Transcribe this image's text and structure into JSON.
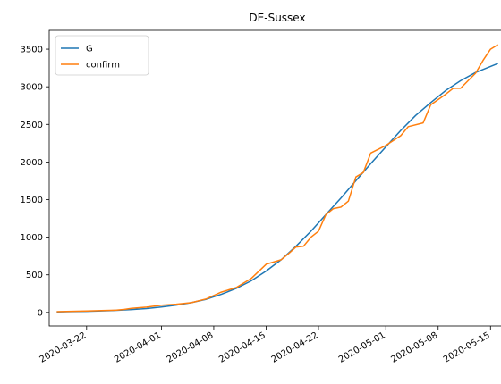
{
  "chart_data": {
    "type": "line",
    "title": "DE-Sussex",
    "xlabel": "",
    "ylabel": "",
    "x_axis_type": "date",
    "xlim": [
      "2020-03-17",
      "2020-05-17"
    ],
    "ylim": [
      -180,
      3750
    ],
    "x_ticks": [
      "2020-03-22",
      "2020-04-01",
      "2020-04-08",
      "2020-04-15",
      "2020-04-22",
      "2020-05-01",
      "2020-05-08",
      "2020-05-15"
    ],
    "y_ticks": [
      0,
      500,
      1000,
      1500,
      2000,
      2500,
      3000,
      3500
    ],
    "grid": false,
    "legend_position": "top-left",
    "series": [
      {
        "name": "G",
        "color": "#1f77b4",
        "points": [
          [
            "2020-03-18",
            8
          ],
          [
            "2020-03-20",
            11
          ],
          [
            "2020-03-22",
            15
          ],
          [
            "2020-03-24",
            21
          ],
          [
            "2020-03-26",
            28
          ],
          [
            "2020-03-28",
            38
          ],
          [
            "2020-03-30",
            52
          ],
          [
            "2020-04-01",
            72
          ],
          [
            "2020-04-03",
            98
          ],
          [
            "2020-04-05",
            130
          ],
          [
            "2020-04-07",
            175
          ],
          [
            "2020-04-09",
            240
          ],
          [
            "2020-04-11",
            320
          ],
          [
            "2020-04-13",
            420
          ],
          [
            "2020-04-15",
            550
          ],
          [
            "2020-04-17",
            700
          ],
          [
            "2020-04-19",
            880
          ],
          [
            "2020-04-21",
            1080
          ],
          [
            "2020-04-23",
            1300
          ],
          [
            "2020-04-25",
            1520
          ],
          [
            "2020-04-27",
            1750
          ],
          [
            "2020-04-29",
            1980
          ],
          [
            "2020-05-01",
            2200
          ],
          [
            "2020-05-03",
            2420
          ],
          [
            "2020-05-05",
            2620
          ],
          [
            "2020-05-07",
            2790
          ],
          [
            "2020-05-09",
            2950
          ],
          [
            "2020-05-11",
            3080
          ],
          [
            "2020-05-13",
            3190
          ],
          [
            "2020-05-15",
            3270
          ],
          [
            "2020-05-16",
            3310
          ]
        ]
      },
      {
        "name": "confirm",
        "color": "#ff7f0e",
        "points": [
          [
            "2020-03-18",
            10
          ],
          [
            "2020-03-20",
            15
          ],
          [
            "2020-03-22",
            20
          ],
          [
            "2020-03-24",
            25
          ],
          [
            "2020-03-26",
            30
          ],
          [
            "2020-03-27",
            40
          ],
          [
            "2020-03-28",
            55
          ],
          [
            "2020-03-30",
            70
          ],
          [
            "2020-04-01",
            95
          ],
          [
            "2020-04-03",
            110
          ],
          [
            "2020-04-05",
            130
          ],
          [
            "2020-04-07",
            180
          ],
          [
            "2020-04-09",
            270
          ],
          [
            "2020-04-11",
            330
          ],
          [
            "2020-04-13",
            450
          ],
          [
            "2020-04-15",
            640
          ],
          [
            "2020-04-17",
            700
          ],
          [
            "2020-04-18",
            780
          ],
          [
            "2020-04-19",
            870
          ],
          [
            "2020-04-20",
            880
          ],
          [
            "2020-04-21",
            1000
          ],
          [
            "2020-04-22",
            1080
          ],
          [
            "2020-04-23",
            1300
          ],
          [
            "2020-04-24",
            1380
          ],
          [
            "2020-04-25",
            1400
          ],
          [
            "2020-04-26",
            1480
          ],
          [
            "2020-04-27",
            1800
          ],
          [
            "2020-04-28",
            1860
          ],
          [
            "2020-04-29",
            2120
          ],
          [
            "2020-05-01",
            2220
          ],
          [
            "2020-05-03",
            2350
          ],
          [
            "2020-05-04",
            2470
          ],
          [
            "2020-05-06",
            2520
          ],
          [
            "2020-05-07",
            2760
          ],
          [
            "2020-05-09",
            2900
          ],
          [
            "2020-05-10",
            2980
          ],
          [
            "2020-05-11",
            2980
          ],
          [
            "2020-05-12",
            3080
          ],
          [
            "2020-05-13",
            3180
          ],
          [
            "2020-05-14",
            3350
          ],
          [
            "2020-05-15",
            3500
          ],
          [
            "2020-05-16",
            3560
          ]
        ]
      }
    ]
  }
}
